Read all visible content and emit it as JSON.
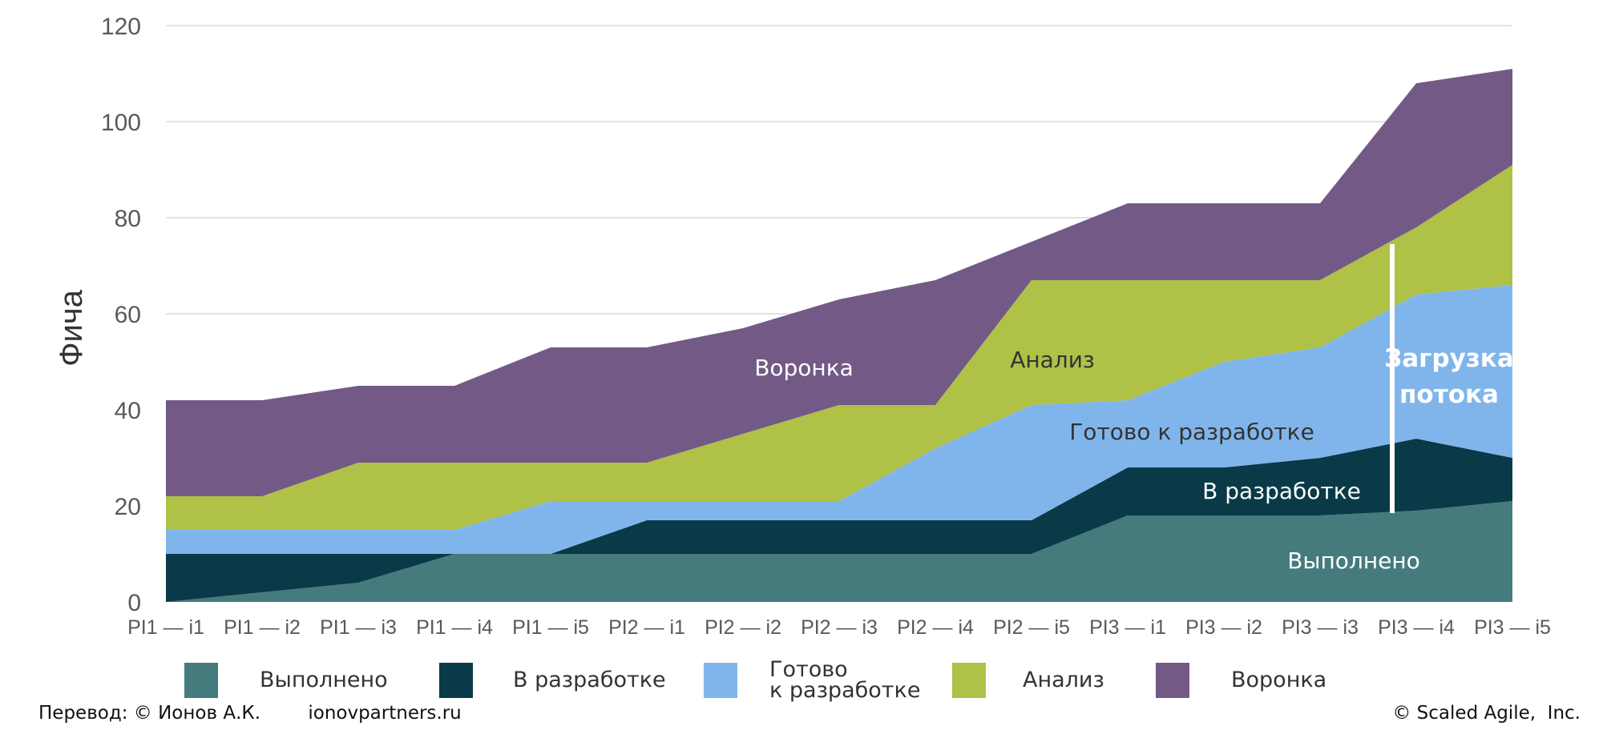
{
  "chart_data": {
    "type": "area",
    "stacked": true,
    "ylabel": "Фича",
    "xlabel": "",
    "ylim": [
      0,
      120
    ],
    "yticks": [
      0,
      20,
      40,
      60,
      80,
      100,
      120
    ],
    "grid": true,
    "categories": [
      "PI1 — i1",
      "PI1 — i2",
      "PI1 — i3",
      "PI1 — i4",
      "PI1 — i5",
      "PI2 — i1",
      "PI2 — i2",
      "PI2 — i3",
      "PI2 — i4",
      "PI2 — i5",
      "PI3 — i1",
      "PI3 — i2",
      "PI3 — i3",
      "PI3 — i4",
      "PI3 — i5"
    ],
    "series": [
      {
        "name": "Выполнено",
        "color": "#467b7d",
        "values": [
          0,
          2,
          4,
          10,
          10,
          10,
          10,
          10,
          10,
          10,
          18,
          18,
          18,
          19,
          21
        ]
      },
      {
        "name": "В разработке",
        "color": "#0a3a48",
        "values": [
          10,
          8,
          6,
          0,
          0,
          7,
          7,
          7,
          7,
          7,
          10,
          10,
          12,
          15,
          9
        ]
      },
      {
        "name": "Готово\nк разработке",
        "color": "#80b5ec",
        "values": [
          5,
          5,
          5,
          5,
          11,
          4,
          4,
          4,
          15,
          24,
          14,
          22,
          23,
          30,
          36
        ]
      },
      {
        "name": "Анализ",
        "color": "#afc146",
        "values": [
          7,
          7,
          14,
          14,
          8,
          8,
          14,
          20,
          9,
          26,
          25,
          17,
          14,
          14,
          25
        ]
      },
      {
        "name": "Воронка",
        "color": "#735a86",
        "values": [
          20,
          20,
          16,
          16,
          24,
          24,
          22,
          22,
          26,
          8,
          16,
          16,
          16,
          30,
          20
        ]
      }
    ],
    "area_labels": {
      "done": "Выполнено",
      "in_dev": "В разработке",
      "ready": "Готово к разработке",
      "analysis": "Анализ",
      "funnel": "Воронка"
    },
    "annotation": {
      "line1": "Загрузка",
      "line2": "потока",
      "marker_color": "#ffffff"
    },
    "legend_position": "bottom"
  },
  "footer": {
    "translation": "Перевод: © Ионов А.К.",
    "site": "ionovpartners.ru",
    "copyright": "© Scaled Agile,  Inc."
  }
}
